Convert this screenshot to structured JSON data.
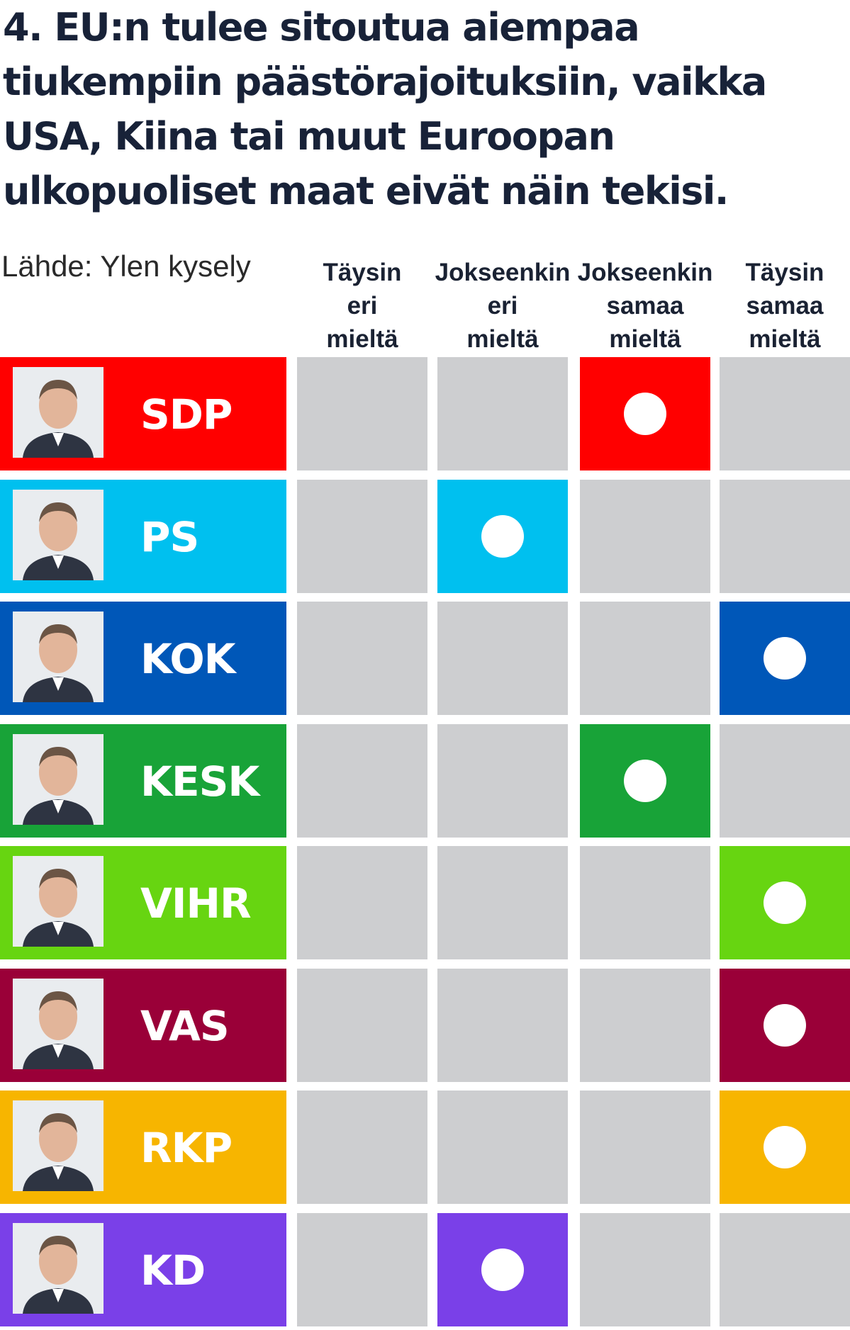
{
  "title": "4. EU:n tulee sitoutua aiempaa tiukempiin päästörajoituksiin, vaikka USA, Kiina tai muut Euroopan ulkopuoliset maat eivät näin tekisi.",
  "source": "Lähde: Ylen kysely",
  "chart_data": {
    "type": "table",
    "title": "4. EU:n tulee sitoutua aiempaa tiukempiin päästörajoituksiin, vaikka USA, Kiina tai muut Euroopan ulkopuoliset maat eivät näin tekisi.",
    "columns": [
      [
        "Täysin",
        "eri",
        "mieltä"
      ],
      [
        "Jokseenkin",
        "eri",
        "mieltä"
      ],
      [
        "Jokseenkin",
        "samaa",
        "mieltä"
      ],
      [
        "Täysin",
        "samaa",
        "mieltä"
      ]
    ],
    "rows": [
      {
        "party": "SDP",
        "color": "#ff0000",
        "answer": 2
      },
      {
        "party": "PS",
        "color": "#00c0ef",
        "answer": 1
      },
      {
        "party": "KOK",
        "color": "#0057b8",
        "answer": 3
      },
      {
        "party": "KESK",
        "color": "#18a338",
        "answer": 2
      },
      {
        "party": "VIHR",
        "color": "#67d511",
        "answer": 3
      },
      {
        "party": "VAS",
        "color": "#9a0038",
        "answer": 3
      },
      {
        "party": "RKP",
        "color": "#f7b500",
        "answer": 3
      },
      {
        "party": "KD",
        "color": "#7a40e8",
        "answer": 1
      }
    ],
    "empty_cell_color": "#cdced0"
  }
}
